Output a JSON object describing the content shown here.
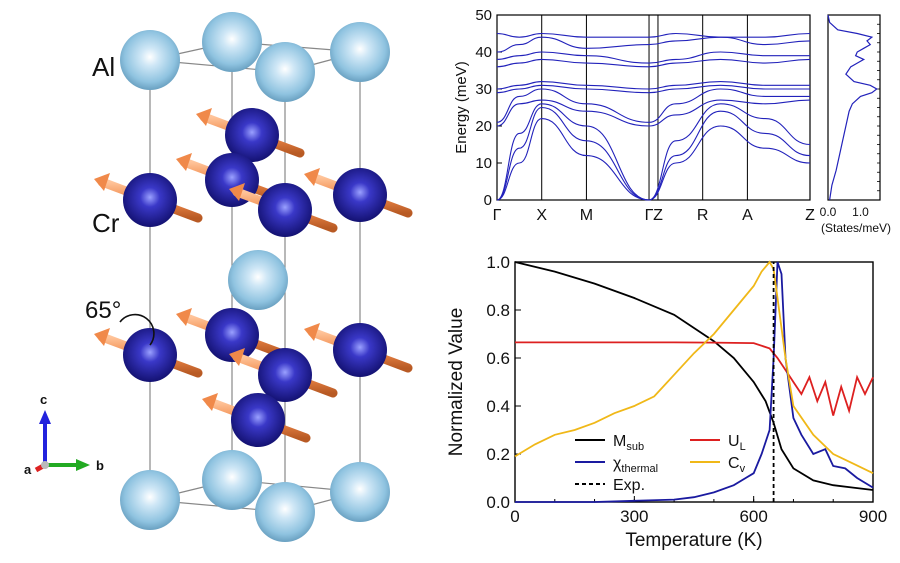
{
  "structure": {
    "labels": {
      "al": "Al",
      "cr": "Cr",
      "angle": "65°",
      "axis_a": "a",
      "axis_b": "b",
      "axis_c": "c"
    },
    "colors": {
      "al_atom": "#8fc3e0",
      "cr_atom": "#1c1a9c",
      "spin_arrow": "#f0894a",
      "cell_edge": "#888888"
    }
  },
  "chart_data": [
    {
      "type": "line",
      "title": "",
      "ylabel": "Energy (meV)",
      "xlabel": "",
      "ylim": [
        0,
        50
      ],
      "yticks": [
        0,
        10,
        20,
        30,
        40,
        50
      ],
      "kpoints": [
        {
          "label": "Γ",
          "pos": 0
        },
        {
          "label": "X",
          "pos": 1
        },
        {
          "label": "M",
          "pos": 2
        },
        {
          "label": "Γ",
          "pos": 3.4
        },
        {
          "label": "Z",
          "pos": 3.6
        },
        {
          "label": "R",
          "pos": 4.6
        },
        {
          "label": "A",
          "pos": 5.6
        },
        {
          "label": "Z",
          "pos": 7
        }
      ],
      "xrange": [
        0,
        7
      ],
      "color": "#2222bb",
      "bands": [
        [
          0,
          10,
          22,
          12,
          0,
          10,
          20,
          14,
          10
        ],
        [
          0,
          14,
          25,
          16,
          0,
          12,
          24,
          18,
          12
        ],
        [
          0,
          18,
          26,
          20,
          0,
          16,
          26,
          22,
          15
        ],
        [
          20,
          26,
          27,
          24,
          20,
          23,
          27,
          26,
          27
        ],
        [
          21,
          28,
          30,
          26,
          21,
          26,
          30,
          28,
          28
        ],
        [
          29,
          30,
          31,
          30,
          29,
          30,
          31,
          30,
          30
        ],
        [
          30,
          31,
          32,
          31,
          30,
          31,
          32,
          31,
          31
        ],
        [
          36,
          37,
          38,
          37,
          36,
          37,
          38,
          37,
          38
        ],
        [
          38,
          39,
          40,
          39,
          37,
          38,
          40,
          39,
          39
        ],
        [
          40,
          42,
          44,
          41,
          42,
          43,
          44,
          42,
          43
        ],
        [
          45,
          44,
          45,
          44,
          44,
          45,
          44,
          44,
          45
        ]
      ],
      "band_x": [
        0,
        0.5,
        1,
        2,
        3.4,
        4,
        5,
        6,
        7
      ]
    },
    {
      "type": "line",
      "title": "",
      "xlabel": "(States/meV)",
      "xticks": [
        0.0,
        1.0
      ],
      "xtick_labels": [
        "0.0",
        "1.0"
      ],
      "xlim": [
        0,
        1.6
      ],
      "ylim": [
        0,
        50
      ],
      "color": "#2222bb",
      "dos_energy": [
        0,
        4,
        8,
        12,
        16,
        20,
        22,
        24,
        26,
        28,
        29,
        30,
        31,
        32,
        34,
        36,
        37,
        38,
        39,
        40,
        41,
        42,
        43,
        44,
        45,
        46,
        48,
        50
      ],
      "dos_value": [
        0.05,
        0.12,
        0.25,
        0.35,
        0.45,
        0.55,
        0.6,
        0.65,
        0.75,
        1.0,
        1.35,
        1.5,
        1.3,
        0.8,
        0.55,
        0.7,
        0.9,
        1.1,
        0.85,
        0.9,
        1.1,
        1.3,
        1.2,
        1.35,
        0.9,
        0.3,
        0.05,
        0.0
      ]
    },
    {
      "type": "line",
      "title": "",
      "xlabel": "Temperature (K)",
      "ylabel": "Normalized Value",
      "xlim": [
        0,
        900
      ],
      "ylim": [
        0,
        1.0
      ],
      "xticks": [
        0,
        300,
        600,
        900
      ],
      "yticks": [
        0.0,
        0.2,
        0.4,
        0.6,
        0.8,
        1.0
      ],
      "ytick_labels": [
        "0.0",
        "0.2",
        "0.4",
        "0.6",
        "0.8",
        "1.0"
      ],
      "legend_placement": "bottom-left",
      "exp_tc": 650,
      "series": [
        {
          "name": "M",
          "sub": "sub",
          "color": "#000000",
          "dashed": false,
          "x": [
            0,
            100,
            200,
            300,
            400,
            500,
            550,
            600,
            630,
            650,
            670,
            700,
            750,
            800,
            850,
            900
          ],
          "y": [
            1.0,
            0.96,
            0.91,
            0.85,
            0.78,
            0.67,
            0.6,
            0.5,
            0.42,
            0.33,
            0.22,
            0.14,
            0.09,
            0.07,
            0.06,
            0.05
          ]
        },
        {
          "name": "U",
          "sub": "L",
          "color": "#dd2020",
          "dashed": false,
          "x": [
            0,
            100,
            200,
            300,
            400,
            500,
            600,
            640,
            660,
            680,
            700,
            720,
            740,
            760,
            780,
            800,
            820,
            840,
            860,
            880,
            900
          ],
          "y": [
            0.665,
            0.665,
            0.665,
            0.665,
            0.665,
            0.664,
            0.662,
            0.64,
            0.6,
            0.55,
            0.5,
            0.45,
            0.52,
            0.42,
            0.5,
            0.36,
            0.48,
            0.38,
            0.52,
            0.45,
            0.52
          ]
        },
        {
          "name": "χ",
          "sub": "thermal",
          "color": "#1a1aa0",
          "dashed": false,
          "x": [
            0,
            200,
            300,
            400,
            450,
            500,
            550,
            580,
            600,
            620,
            640,
            650,
            660,
            670,
            680,
            700,
            720,
            750,
            780,
            800,
            830,
            860,
            900
          ],
          "y": [
            0.0,
            0.0,
            0.005,
            0.01,
            0.02,
            0.04,
            0.07,
            0.1,
            0.12,
            0.2,
            0.3,
            0.6,
            1.0,
            0.95,
            0.6,
            0.35,
            0.28,
            0.2,
            0.22,
            0.15,
            0.14,
            0.1,
            0.06
          ]
        },
        {
          "name": "C",
          "sub": "v",
          "color": "#f0b818",
          "dashed": false,
          "x": [
            0,
            50,
            100,
            150,
            200,
            250,
            300,
            350,
            400,
            450,
            500,
            550,
            600,
            620,
            640,
            650,
            660,
            680,
            700,
            750,
            800,
            850,
            900
          ],
          "y": [
            0.19,
            0.24,
            0.28,
            0.3,
            0.33,
            0.37,
            0.4,
            0.44,
            0.53,
            0.62,
            0.7,
            0.8,
            0.9,
            0.96,
            1.0,
            0.97,
            0.85,
            0.6,
            0.4,
            0.28,
            0.2,
            0.16,
            0.12
          ]
        },
        {
          "name": "Exp.",
          "sub": "",
          "color": "#000000",
          "dashed": true,
          "x": [
            650,
            650
          ],
          "y": [
            0.0,
            1.0
          ]
        }
      ]
    }
  ]
}
